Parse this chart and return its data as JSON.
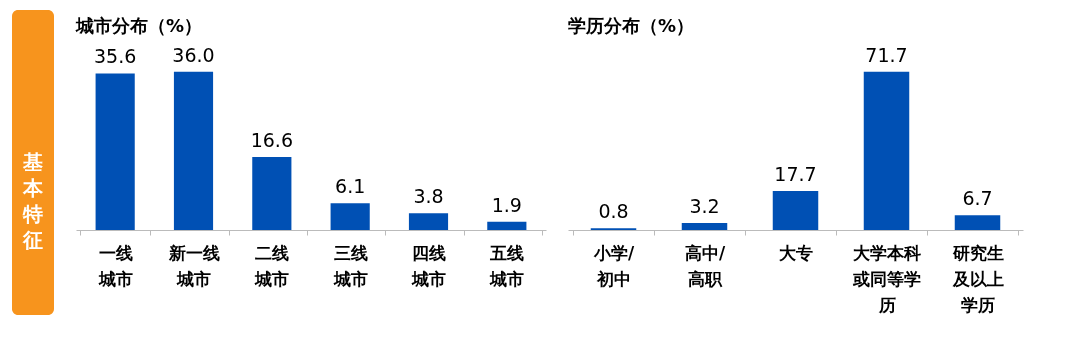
{
  "chart_data": [
    {
      "type": "other",
      "title": "基本特征"
    },
    {
      "type": "bar",
      "title": "城市分布（%）",
      "categories": [
        "一线城市",
        "新一线城市",
        "二线城市",
        "三线城市",
        "四线城市",
        "五线城市"
      ],
      "values": [
        35.6,
        36.0,
        16.6,
        6.1,
        3.8,
        1.9
      ],
      "value_labels": [
        "35.6",
        "36.0",
        "16.6",
        "6.1",
        "3.8",
        "1.9"
      ],
      "color": "#0050b4"
    },
    {
      "type": "bar",
      "title": "学历分布（%）",
      "categories": [
        "小学/初中",
        "高中/高职",
        "大专",
        "大学本科或同等学历",
        "研究生及以上学历"
      ],
      "values": [
        0.8,
        3.2,
        17.7,
        71.7,
        6.7
      ],
      "value_labels": [
        "0.8",
        "3.2",
        "17.7",
        "71.7",
        "6.7"
      ],
      "color": "#0050b4"
    }
  ]
}
